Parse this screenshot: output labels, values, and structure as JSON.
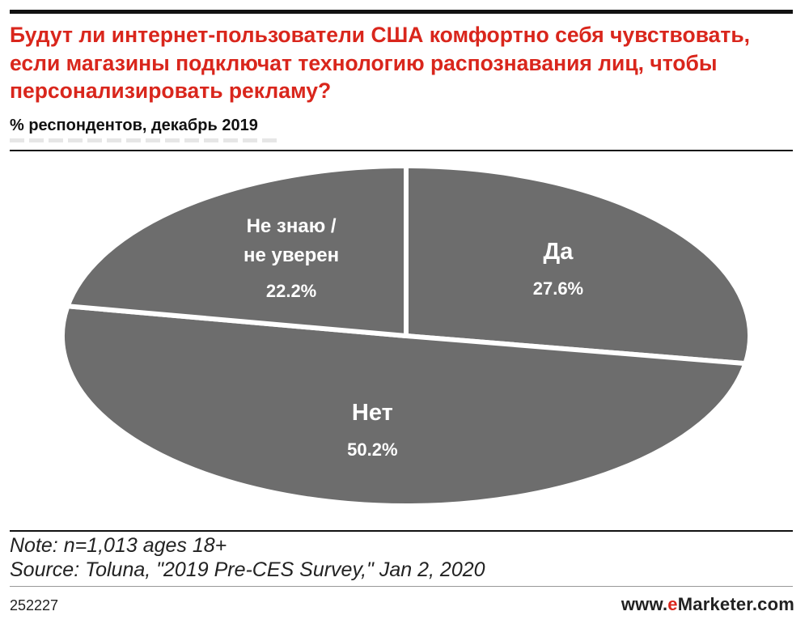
{
  "title": "Будут ли интернет-пользователи США комфортно себя чувствовать, если магазины подключат технологию распознавания лиц, чтобы персонализировать рекламу?",
  "subtitle": "% респондентов, декабрь 2019",
  "note": "Note: n=1,013 ages 18+",
  "source": "Source: Toluna, \"2019 Pre-CES Survey,\" Jan 2, 2020",
  "chart_id": "252227",
  "logo": {
    "prefix": "www.",
    "e": "e",
    "suffix": "Marketer.com"
  },
  "colors": {
    "title": "#d9261c",
    "slice": "#6d6d6d",
    "separator": "#ffffff",
    "label": "#ffffff"
  },
  "chart_data": {
    "type": "pie",
    "title": "Будут ли интернет-пользователи США комфортно себя чувствовать, если магазины подключат технологию распознавания лиц, чтобы персонализировать рекламу?",
    "subtitle": "% респондентов, декабрь 2019",
    "unit": "%",
    "slices": [
      {
        "label": "Да",
        "value": 27.6,
        "value_label": "27.6%"
      },
      {
        "label": "Нет",
        "value": 50.2,
        "value_label": "50.2%"
      },
      {
        "label": "Не знаю / не уверен",
        "label_lines": [
          "Не знаю /",
          "не уверен"
        ],
        "value": 22.2,
        "value_label": "22.2%"
      }
    ],
    "start": "top",
    "direction": "clockwise",
    "perspective": "tilted ellipse"
  }
}
